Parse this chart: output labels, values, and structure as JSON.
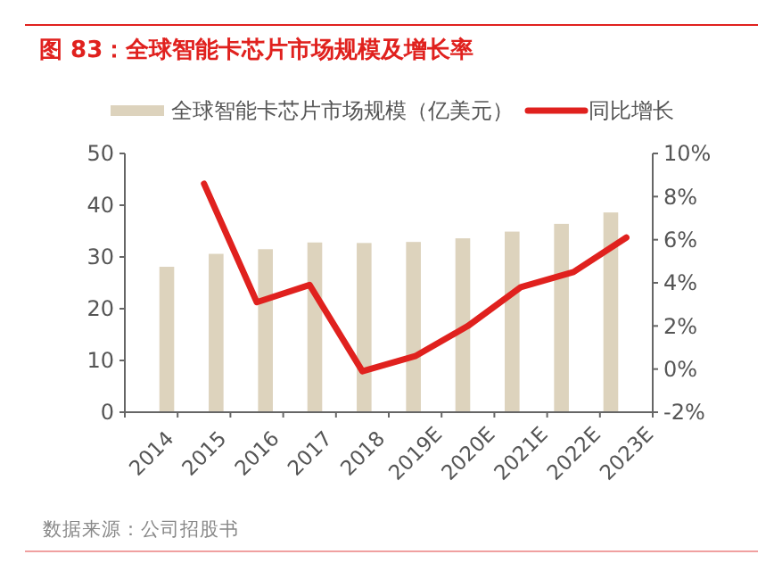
{
  "chart_data": {
    "type": "bar",
    "title": "图 83：全球智能卡芯片市场规模及增长率",
    "categories": [
      "2014",
      "2015",
      "2016",
      "2017",
      "2018",
      "2019E",
      "2020E",
      "2021E",
      "2022E",
      "2023E"
    ],
    "series": [
      {
        "name": "全球智能卡芯片市场规模（亿美元）",
        "color": "#ddd3bd",
        "values": [
          28.1,
          30.6,
          31.5,
          32.8,
          32.7,
          32.9,
          33.6,
          34.9,
          36.4,
          38.6
        ]
      },
      {
        "name": "同比增长",
        "type": "line",
        "axis": "y2",
        "color": "#e0211e",
        "values": [
          null,
          8.6,
          3.1,
          3.9,
          -0.1,
          0.6,
          2.0,
          3.8,
          4.5,
          6.1
        ]
      }
    ],
    "ylim": [
      0,
      50
    ],
    "yticks": [
      0,
      10,
      20,
      30,
      40,
      50
    ],
    "y2lim": [
      -2,
      10
    ],
    "y2ticks": [
      {
        "value": -2,
        "label": "-2%"
      },
      {
        "value": 0,
        "label": "0%"
      },
      {
        "value": 2,
        "label": "2%"
      },
      {
        "value": 4,
        "label": "4%"
      },
      {
        "value": 6,
        "label": "6%"
      },
      {
        "value": 8,
        "label": "8%"
      },
      {
        "value": 10,
        "label": "10%"
      }
    ],
    "legend": "top",
    "grid": false,
    "marker": "none",
    "line_style": "solid",
    "annotations": [
      "数据来源：公司招股书"
    ]
  }
}
